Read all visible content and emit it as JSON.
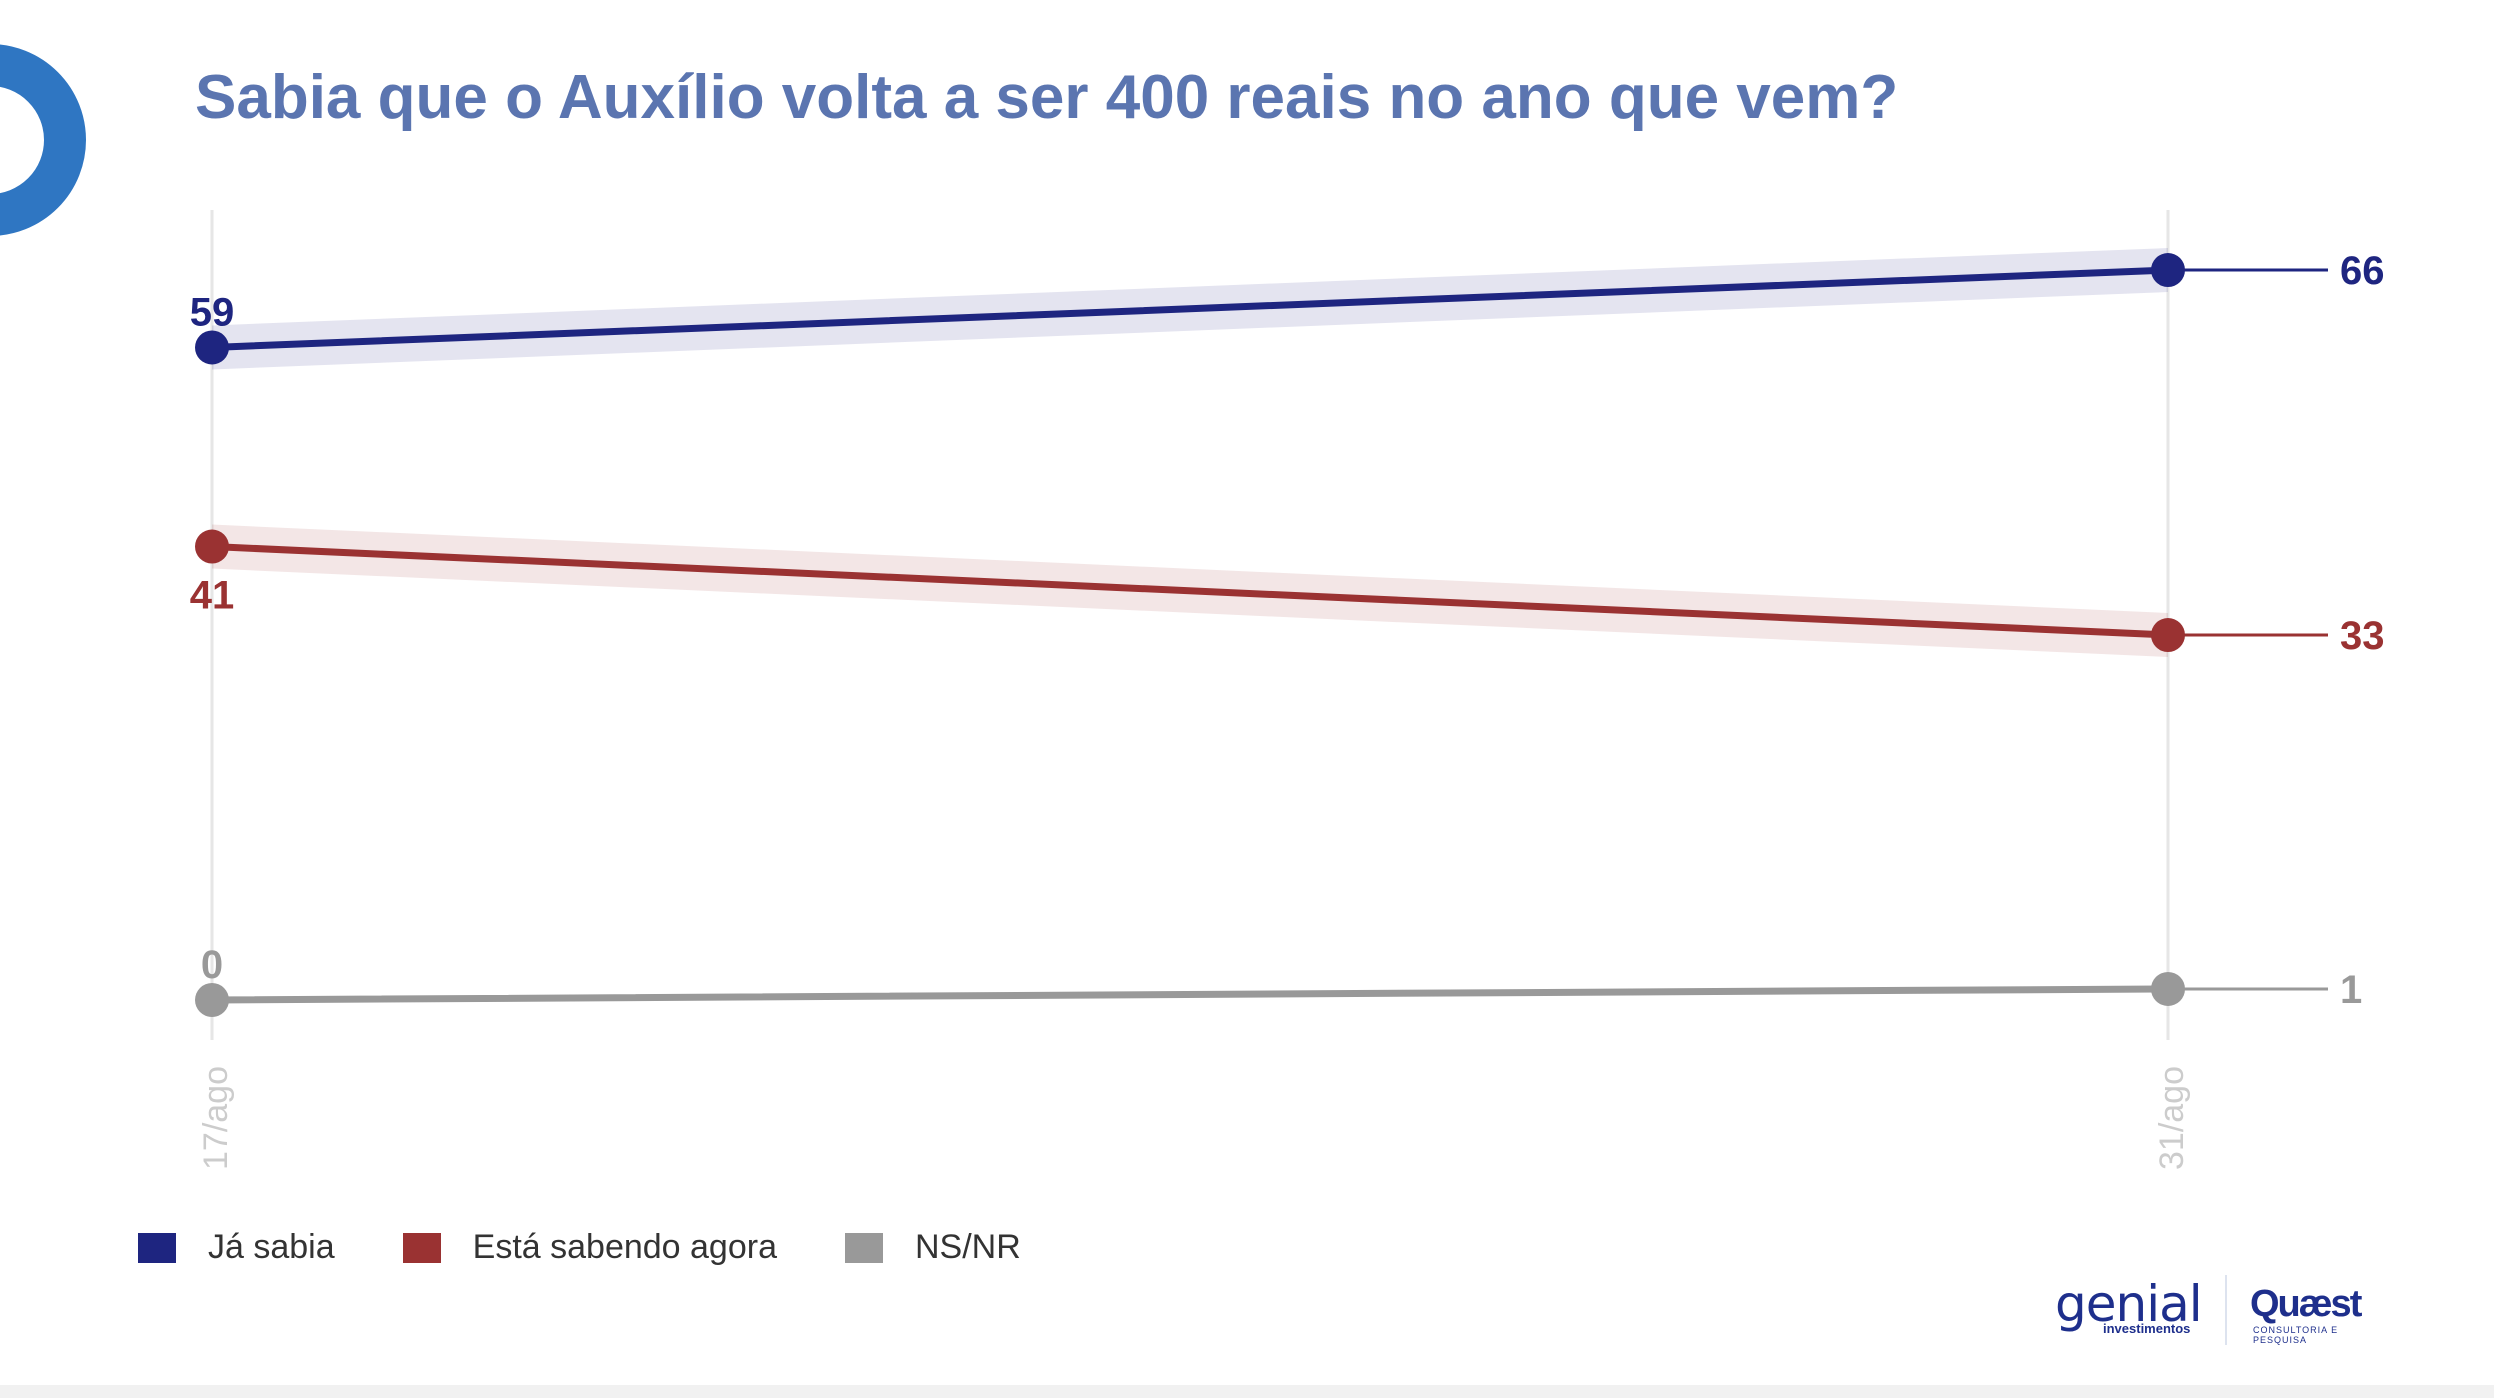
{
  "title": "Sabia que o Auxílio volta a ser 400 reais no ano que vem?",
  "chart_data": {
    "type": "line",
    "title": "Sabia que o Auxílio volta a ser 400 reais no ano que vem?",
    "categories": [
      "17/ago",
      "31/ago"
    ],
    "xlabel": "",
    "ylabel": "",
    "ylim": [
      0,
      75
    ],
    "grid": "vertical gridlines at each date",
    "legend_position": "bottom-left",
    "series": [
      {
        "name": "Já sabia",
        "values": [
          59,
          66
        ],
        "color": "#1e2580",
        "labels": [
          "59",
          "66"
        ]
      },
      {
        "name": "Está sabendo agora",
        "values": [
          41,
          33
        ],
        "color": "#9a3232",
        "labels": [
          "41",
          "33"
        ]
      },
      {
        "name": "NS/NR",
        "values": [
          0,
          1
        ],
        "color": "#999999",
        "labels": [
          "0",
          "1"
        ]
      }
    ]
  },
  "legend": [
    {
      "label": "Já sabia",
      "color": "#1e2580"
    },
    {
      "label": "Está sabendo agora",
      "color": "#9a3232"
    },
    {
      "label": "NS/NR",
      "color": "#999999"
    }
  ],
  "logos": {
    "genial": "genial",
    "genial_sub": "investimentos",
    "quaest": "Quæst",
    "quaest_sub": "CONSULTORIA E PESQUISA"
  },
  "colors": {
    "title": "#5b75b0",
    "decor_circle": "#2f76c2",
    "axis_label": "#cccccc",
    "gridline": "#e6e6e6"
  }
}
